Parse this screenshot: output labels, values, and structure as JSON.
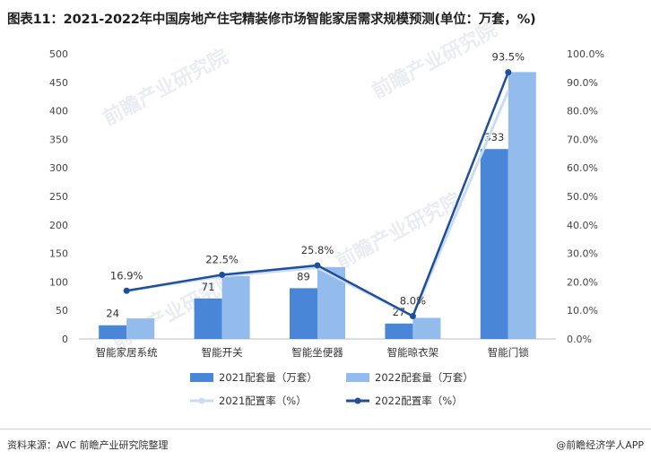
{
  "title": "图表11：2021-2022年中国房地产住宅精装修市场智能家居需求规模预测(单位：万套，%)",
  "source": "资料来源：AVC 前瞻产业研究院整理",
  "brand": "@前瞻经济学人APP",
  "watermark": "前瞻产业研究院",
  "chart_data": {
    "type": "bar",
    "categories": [
      "智能家居系统",
      "智能开关",
      "智能坐便器",
      "智能晾衣架",
      "智能门锁"
    ],
    "series": [
      {
        "name": "2021配套量（万套）",
        "type": "bar",
        "axis": "left",
        "values": [
          24,
          71,
          89,
          27,
          333
        ],
        "labels": [
          "24",
          "71",
          "89",
          "27",
          "333"
        ],
        "color": "#4a86d8"
      },
      {
        "name": "2022配套量（万套）",
        "type": "bar",
        "axis": "left",
        "values": [
          36,
          110,
          126,
          37,
          468
        ],
        "color": "#93bcec"
      },
      {
        "name": "2021配置率（%）",
        "type": "line",
        "axis": "right",
        "values": [
          16.9,
          22.0,
          25.0,
          8.0,
          87.0
        ],
        "color": "#c9dcf3"
      },
      {
        "name": "2022配置率（%）",
        "type": "line",
        "axis": "right",
        "values": [
          16.9,
          22.5,
          25.8,
          8.0,
          93.5
        ],
        "labels": [
          "16.9%",
          "22.5%",
          "25.8%",
          "8.0%",
          "93.5%"
        ],
        "color": "#1f4e9c"
      }
    ],
    "yleft": {
      "min": 0,
      "max": 500,
      "ticks": [
        "0",
        "50",
        "100",
        "150",
        "200",
        "250",
        "300",
        "350",
        "400",
        "450",
        "500"
      ]
    },
    "yright": {
      "min": 0,
      "max": 100,
      "ticks": [
        "0.0%",
        "10.0%",
        "20.0%",
        "30.0%",
        "40.0%",
        "50.0%",
        "60.0%",
        "70.0%",
        "80.0%",
        "90.0%",
        "100.0%"
      ]
    },
    "grid": false,
    "legend": "bottom"
  }
}
